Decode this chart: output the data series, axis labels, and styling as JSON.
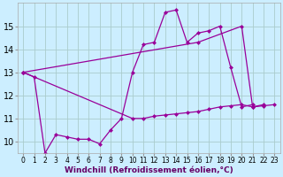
{
  "xlabel": "Windchill (Refroidissement éolien,°C)",
  "background_color": "#cceeff",
  "grid_color": "#aacccc",
  "line_color": "#990099",
  "hours": [
    0,
    1,
    2,
    3,
    4,
    5,
    6,
    7,
    8,
    9,
    10,
    11,
    12,
    13,
    14,
    15,
    16,
    17,
    18,
    19,
    20,
    21,
    22,
    23
  ],
  "series1": [
    13.0,
    12.8,
    9.5,
    10.3,
    10.2,
    10.1,
    10.1,
    9.9,
    10.5,
    11.0,
    13.0,
    14.2,
    14.3,
    15.6,
    15.7,
    14.3,
    14.7,
    14.8,
    15.0,
    13.2,
    11.5,
    11.6,
    null,
    null
  ],
  "series2": [
    13.0,
    null,
    null,
    null,
    null,
    null,
    null,
    null,
    null,
    null,
    null,
    null,
    null,
    null,
    null,
    null,
    14.3,
    null,
    null,
    null,
    15.0,
    11.5,
    11.6,
    null
  ],
  "series3": [
    13.0,
    null,
    null,
    null,
    null,
    null,
    null,
    null,
    null,
    null,
    11.0,
    11.0,
    11.1,
    11.15,
    11.2,
    11.25,
    11.3,
    11.4,
    11.5,
    11.55,
    11.6,
    11.5,
    11.55,
    11.6
  ],
  "ylim": [
    9.5,
    16.0
  ],
  "yticks": [
    10,
    11,
    12,
    13,
    14,
    15
  ],
  "xlim": [
    -0.5,
    23.5
  ],
  "xlabel_color": "#660066",
  "xlabel_fontsize": 6.5,
  "tick_fontsize": 5.5,
  "ytick_fontsize": 7
}
